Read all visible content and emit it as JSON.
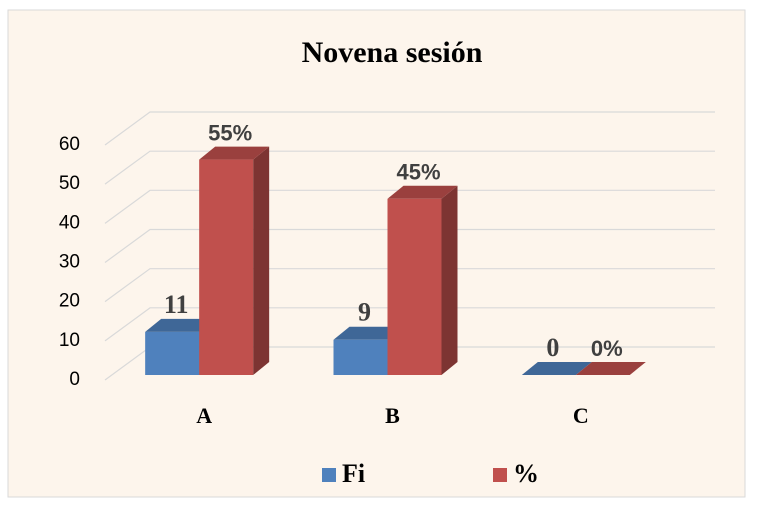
{
  "chart_data": {
    "type": "bar3d",
    "title": "Novena sesión",
    "categories": [
      "A",
      "B",
      "C"
    ],
    "series": [
      {
        "name": "Fi",
        "color": "#4f81bd",
        "values": [
          11,
          9,
          0
        ]
      },
      {
        "name": "%",
        "color": "#c0504d",
        "values": [
          55,
          45,
          0
        ],
        "value_labels": [
          "55%",
          "45%",
          "0%"
        ]
      }
    ],
    "ylim": [
      0,
      60
    ],
    "yticks": [
      0,
      10,
      20,
      30,
      40,
      50,
      60
    ],
    "grid": true,
    "legend": "bottom"
  }
}
